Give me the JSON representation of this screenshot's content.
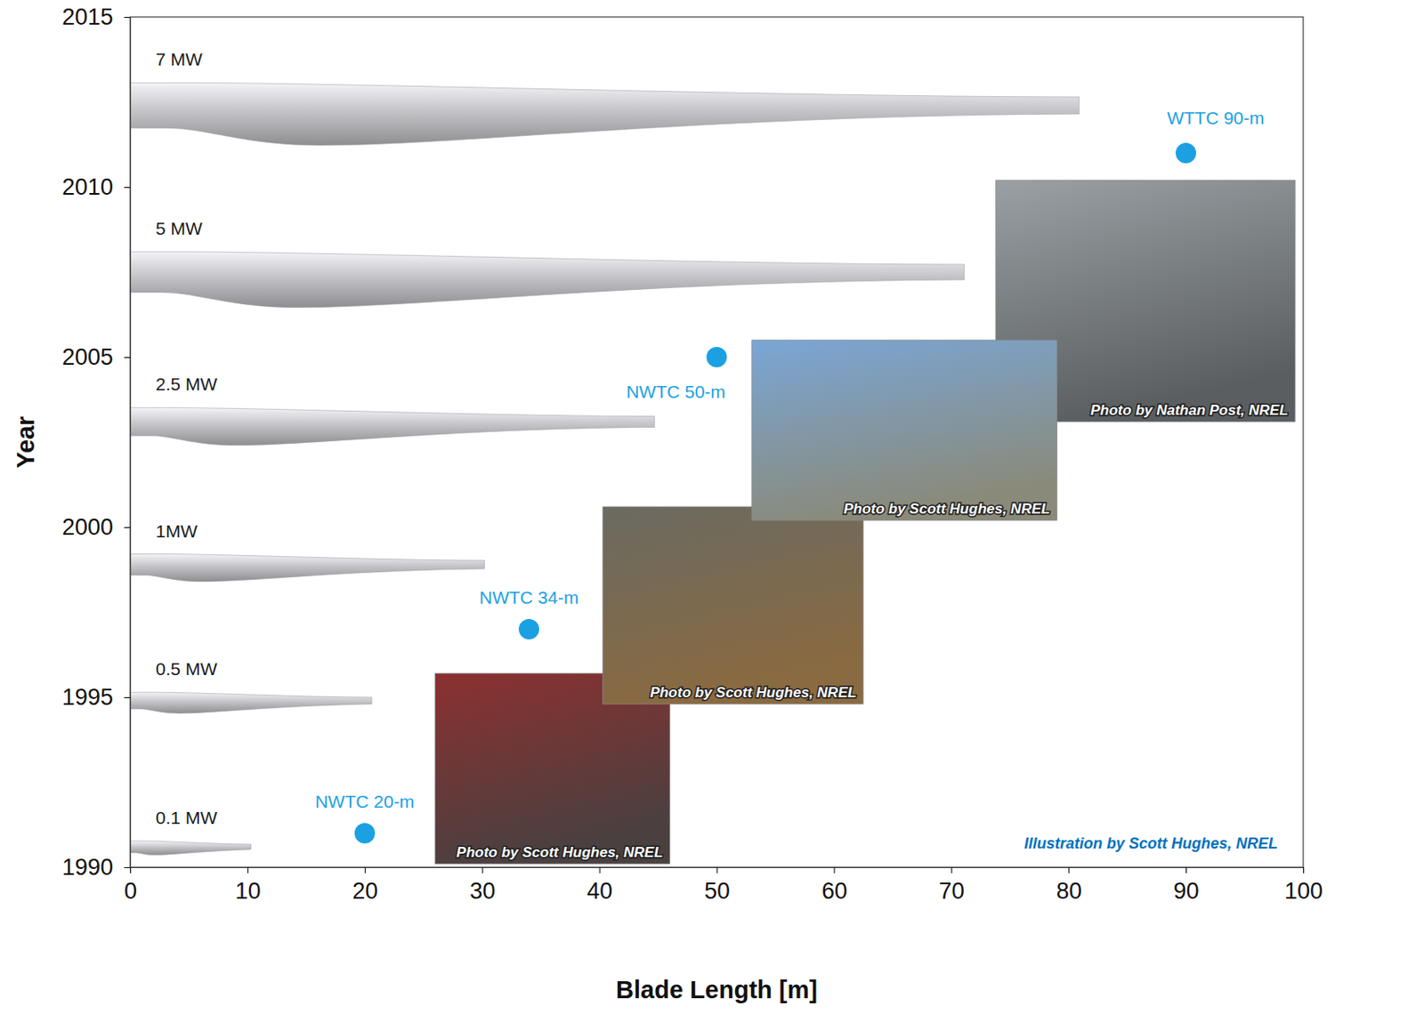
{
  "chart_data": {
    "type": "scatter",
    "x_label": "Blade Length [m]",
    "y_label": "Year",
    "xlim": [
      0,
      100
    ],
    "xticks": [
      0,
      10,
      20,
      30,
      40,
      50,
      60,
      70,
      80,
      90,
      100
    ],
    "ylim": [
      1990,
      2015
    ],
    "yticks": [
      1990,
      1995,
      2000,
      2005,
      2010,
      2015
    ],
    "grid": false,
    "blades": {
      "labels": [
        "0.1 MW",
        "0.5 MW",
        "1MW",
        "2.5 MW",
        "5 MW",
        "7 MW"
      ],
      "x": [
        10.3,
        20.6,
        30.2,
        44.7,
        71.1,
        80.9
      ],
      "values": [
        1990.6,
        1994.9,
        1998.9,
        2003.1,
        2007.5,
        2012.4
      ],
      "color": "#c4c4c8"
    },
    "test_facilities": {
      "labels": [
        "NWTC 20-m",
        "NWTC 34-m",
        "NWTC 50-m",
        "WTTC 90-m"
      ],
      "x": [
        20,
        34,
        50,
        90
      ],
      "values": [
        1991,
        1997,
        2005,
        2011
      ],
      "color": "#1ba1e2"
    },
    "photos": [
      "Photo by Scott Hughes, NREL",
      "Photo by Scott Hughes, NREL",
      "Photo by Scott Hughes, NREL",
      "Photo by Nathan Post, NREL"
    ],
    "credit": "Illustration by Scott Hughes, NREL"
  }
}
